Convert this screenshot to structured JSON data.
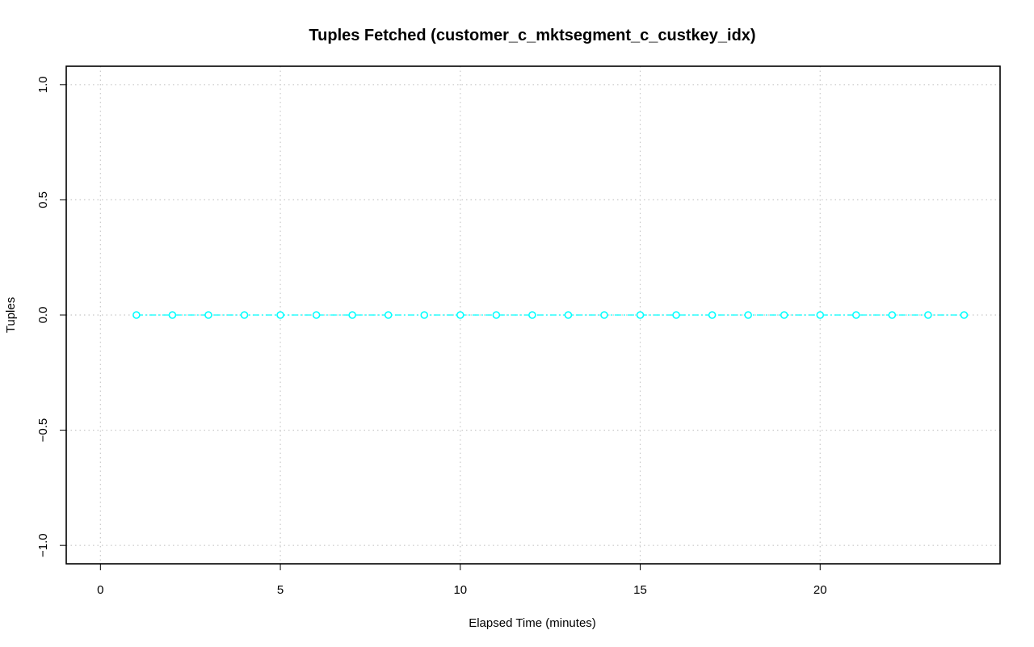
{
  "chart_data": {
    "type": "line",
    "title": "Tuples Fetched (customer_c_mktsegment_c_custkey_idx)",
    "xlabel": "Elapsed Time (minutes)",
    "ylabel": "Tuples",
    "xlim": [
      -0.95,
      25
    ],
    "ylim": [
      -1.08,
      1.08
    ],
    "x_ticks": [
      0,
      5,
      10,
      15,
      20
    ],
    "y_ticks": [
      -1.0,
      -0.5,
      0.0,
      0.5,
      1.0
    ],
    "x_tick_labels": [
      "0",
      "5",
      "10",
      "15",
      "20"
    ],
    "y_tick_labels": [
      "−1.0",
      "−0.5",
      "0.0",
      "0.5",
      "1.0"
    ],
    "grid": true,
    "series": [
      {
        "color": "#00ffff",
        "marker": "circle",
        "line_style": "dash-dot",
        "x": [
          1,
          2,
          3,
          4,
          5,
          6,
          7,
          8,
          9,
          10,
          11,
          12,
          13,
          14,
          15,
          16,
          17,
          18,
          19,
          20,
          21,
          22,
          23,
          24
        ],
        "values": [
          0,
          0,
          0,
          0,
          0,
          0,
          0,
          0,
          0,
          0,
          0,
          0,
          0,
          0,
          0,
          0,
          0,
          0,
          0,
          0,
          0,
          0,
          0,
          0
        ]
      }
    ]
  }
}
